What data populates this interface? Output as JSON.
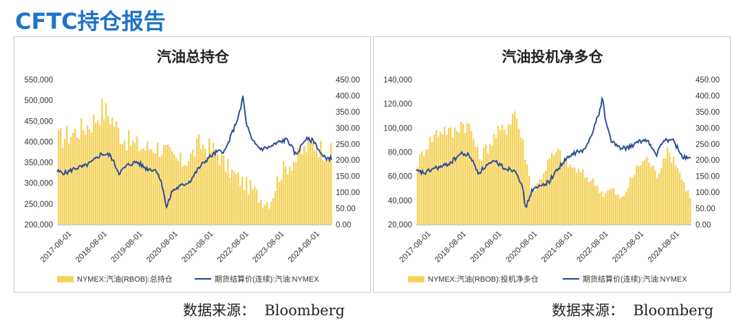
{
  "page": {
    "title": "CFTC持仓报告",
    "source_left": "数据来源：  Bloomberg",
    "source_right": "数据来源：  Bloomberg"
  },
  "colors": {
    "title": "#1f74c9",
    "bar": "#f5d25a",
    "line": "#2e4d9a"
  },
  "chart_data": [
    {
      "type": "bar+line",
      "title": "汽油总持仓",
      "x_ticks": [
        "2017-08-01",
        "2018-08-01",
        "2019-08-01",
        "2020-08-01",
        "2021-08-01",
        "2022-08-01",
        "2023-08-01",
        "2024-08-01"
      ],
      "y_left_ticks": [
        "550,000",
        "500,000",
        "450,000",
        "400,000",
        "350,000",
        "300,000",
        "250,000",
        "200,000"
      ],
      "y_right_ticks": [
        "450.00",
        "400.00",
        "350.00",
        "300.00",
        "250.00",
        "200.00",
        "150.00",
        "100.00",
        "50.00",
        "0.00"
      ],
      "ylim_left": [
        200000,
        550000
      ],
      "ylim_right": [
        0,
        450
      ],
      "x_range": [
        "2017-03-01",
        "2024-12-01"
      ],
      "legend": [
        "NYMEX:汽油(RBOB):总持仓",
        "期货结算价(连续):汽油:NYMEX"
      ],
      "series": [
        {
          "name": "NYMEX:汽油(RBOB):总持仓",
          "axis": "left",
          "x": [
            "2017-03",
            "2017-06",
            "2017-09",
            "2017-12",
            "2018-03",
            "2018-06",
            "2018-09",
            "2018-12",
            "2019-03",
            "2019-06",
            "2019-09",
            "2019-12",
            "2020-03",
            "2020-06",
            "2020-09",
            "2020-12",
            "2021-03",
            "2021-06",
            "2021-09",
            "2021-12",
            "2022-03",
            "2022-06",
            "2022-09",
            "2022-12",
            "2023-03",
            "2023-06",
            "2023-09",
            "2023-12",
            "2024-03",
            "2024-06",
            "2024-09",
            "2024-12"
          ],
          "values": [
            405000,
            415000,
            425000,
            435000,
            450000,
            480000,
            460000,
            420000,
            400000,
            390000,
            385000,
            390000,
            380000,
            360000,
            350000,
            365000,
            395000,
            385000,
            375000,
            340000,
            320000,
            300000,
            285000,
            260000,
            255000,
            320000,
            345000,
            360000,
            385000,
            395000,
            380000,
            370000
          ]
        },
        {
          "name": "期货结算价(连续):汽油:NYMEX",
          "axis": "right",
          "x": [
            "2017-03",
            "2017-06",
            "2017-09",
            "2017-12",
            "2018-03",
            "2018-06",
            "2018-09",
            "2018-12",
            "2019-03",
            "2019-06",
            "2019-09",
            "2019-12",
            "2020-01",
            "2020-03",
            "2020-04",
            "2020-06",
            "2020-09",
            "2020-12",
            "2021-03",
            "2021-06",
            "2021-09",
            "2021-12",
            "2022-03",
            "2022-05",
            "2022-06",
            "2022-07",
            "2022-09",
            "2022-12",
            "2023-03",
            "2023-06",
            "2023-09",
            "2023-12",
            "2024-03",
            "2024-06",
            "2024-09",
            "2024-12"
          ],
          "values": [
            165,
            160,
            175,
            180,
            195,
            220,
            215,
            160,
            185,
            195,
            175,
            170,
            165,
            110,
            50,
            105,
            120,
            135,
            175,
            205,
            225,
            230,
            300,
            350,
            400,
            320,
            260,
            235,
            240,
            255,
            265,
            215,
            265,
            260,
            210,
            205
          ]
        }
      ]
    },
    {
      "type": "bar+line",
      "title": "汽油投机净多仓",
      "x_ticks": [
        "2017-08-01",
        "2018-08-01",
        "2019-08-01",
        "2020-08-01",
        "2021-08-01",
        "2022-08-01",
        "2023-08-01",
        "2024-08-01"
      ],
      "y_left_ticks": [
        "140,000",
        "120,000",
        "100,000",
        "80,000",
        "60,000",
        "40,000",
        "20,000"
      ],
      "y_right_ticks": [
        "450.00",
        "400.00",
        "350.00",
        "300.00",
        "250.00",
        "200.00",
        "150.00",
        "100.00",
        "50.00",
        "0.00"
      ],
      "ylim_left": [
        20000,
        140000
      ],
      "ylim_right": [
        0,
        450
      ],
      "x_range": [
        "2017-03-01",
        "2024-12-01"
      ],
      "legend": [
        "NYMEX:汽油(RBOB):投机净多仓",
        "期货结算价(连续):汽油:NYMEX"
      ],
      "series": [
        {
          "name": "NYMEX:汽油(RBOB):投机净多仓",
          "axis": "left",
          "x": [
            "2017-03",
            "2017-06",
            "2017-09",
            "2017-12",
            "2018-03",
            "2018-06",
            "2018-09",
            "2018-12",
            "2019-03",
            "2019-06",
            "2019-09",
            "2019-12",
            "2020-03",
            "2020-06",
            "2020-09",
            "2020-12",
            "2021-03",
            "2021-06",
            "2021-09",
            "2021-12",
            "2022-03",
            "2022-06",
            "2022-09",
            "2022-12",
            "2023-03",
            "2023-06",
            "2023-09",
            "2023-12",
            "2024-03",
            "2024-06",
            "2024-09",
            "2024-12"
          ],
          "values": [
            70000,
            85000,
            95000,
            100000,
            95000,
            105000,
            100000,
            75000,
            85000,
            95000,
            100000,
            115000,
            85000,
            45000,
            60000,
            75000,
            80000,
            70000,
            65000,
            60000,
            55000,
            45000,
            50000,
            40000,
            55000,
            70000,
            75000,
            60000,
            80000,
            75000,
            55000,
            40000
          ]
        },
        {
          "name": "期货结算价(连续):汽油:NYMEX",
          "axis": "right",
          "x": [
            "2017-03",
            "2017-06",
            "2017-09",
            "2017-12",
            "2018-03",
            "2018-06",
            "2018-09",
            "2018-12",
            "2019-03",
            "2019-06",
            "2019-09",
            "2019-12",
            "2020-01",
            "2020-03",
            "2020-04",
            "2020-06",
            "2020-09",
            "2020-12",
            "2021-03",
            "2021-06",
            "2021-09",
            "2021-12",
            "2022-03",
            "2022-05",
            "2022-06",
            "2022-07",
            "2022-09",
            "2022-12",
            "2023-03",
            "2023-06",
            "2023-09",
            "2023-12",
            "2024-03",
            "2024-06",
            "2024-09",
            "2024-12"
          ],
          "values": [
            165,
            160,
            175,
            180,
            195,
            220,
            215,
            160,
            185,
            195,
            175,
            170,
            165,
            110,
            50,
            105,
            120,
            135,
            175,
            205,
            225,
            230,
            300,
            350,
            400,
            320,
            260,
            235,
            240,
            255,
            265,
            215,
            265,
            260,
            210,
            205
          ]
        }
      ]
    }
  ]
}
